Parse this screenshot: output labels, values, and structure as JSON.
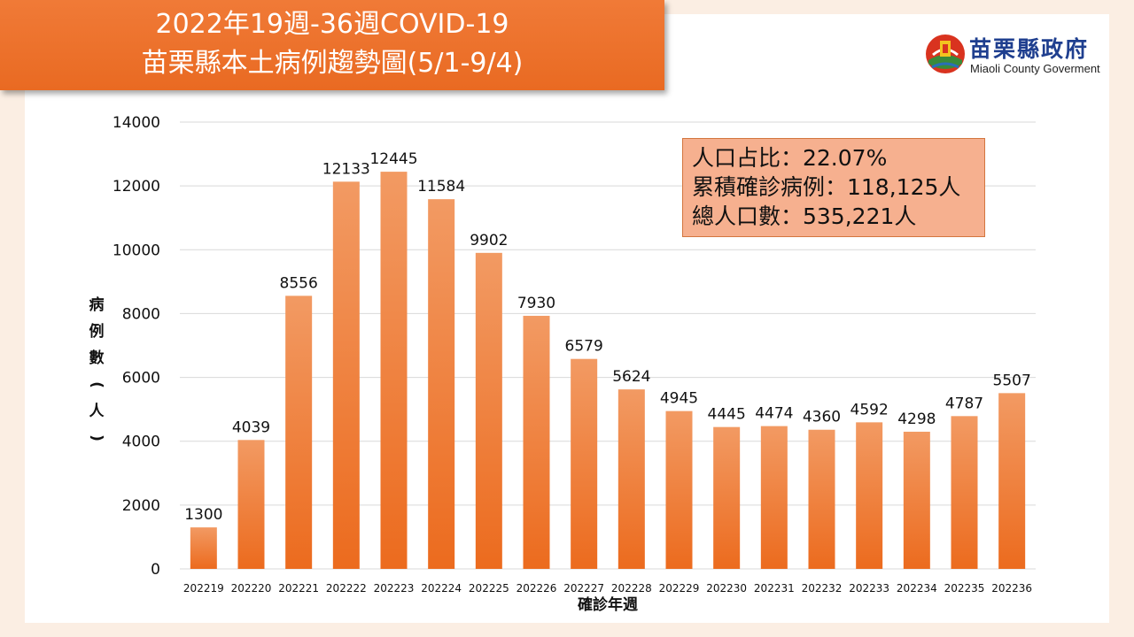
{
  "title": {
    "line1": "2022年19週-36週COVID-19",
    "line2": "苗栗縣本土病例趨勢圖(5/1-9/4)"
  },
  "logo": {
    "name_zh": "苗栗縣政府",
    "name_en": "Miaoli County Goverment"
  },
  "stats": {
    "line1": "人口占比：22.07%",
    "line2": "累積確診病例：118,125人",
    "line3": "總人口數：535,221人"
  },
  "colors": {
    "banner": "#ec7129",
    "bar_top": "#f29a63",
    "bar_bottom": "#ec6b1e",
    "stats_box": "#f6b08f",
    "background": "#fbeee3",
    "logo_text": "#1f3f8f"
  },
  "chart_data": {
    "type": "bar",
    "title": "",
    "xlabel": "確診年週",
    "ylabel": "病例數(人)",
    "ylim": [
      0,
      14000
    ],
    "yticks": [
      0,
      2000,
      4000,
      6000,
      8000,
      10000,
      12000,
      14000
    ],
    "grid": true,
    "categories": [
      "202219",
      "202220",
      "202221",
      "202222",
      "202223",
      "202224",
      "202225",
      "202226",
      "202227",
      "202228",
      "202229",
      "202230",
      "202231",
      "202232",
      "202233",
      "202234",
      "202235",
      "202236"
    ],
    "values": [
      1300,
      4039,
      8556,
      12133,
      12445,
      11584,
      9902,
      7930,
      6579,
      5624,
      4945,
      4445,
      4474,
      4360,
      4592,
      4298,
      4787,
      5507
    ],
    "data_labels": true
  }
}
